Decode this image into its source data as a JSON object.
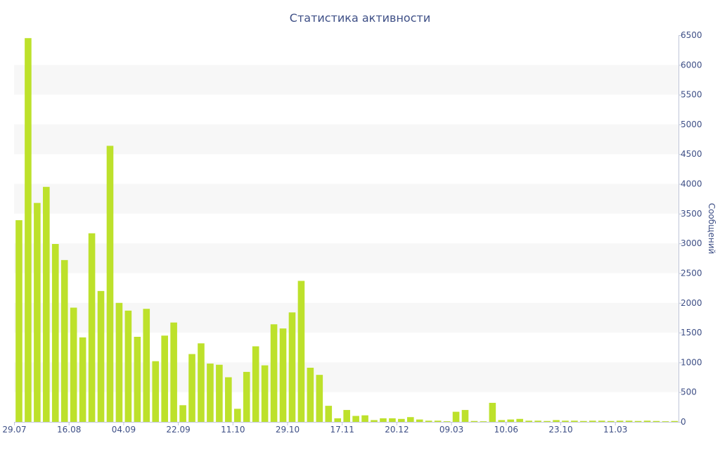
{
  "chart_data": {
    "type": "bar",
    "title": "Статистика активности",
    "ylabel": "Сообщений",
    "ylim": [
      0,
      6500
    ],
    "y_ticks": [
      0,
      500,
      1000,
      1500,
      2000,
      2500,
      3000,
      3500,
      4000,
      4500,
      5000,
      5500,
      6000,
      6500
    ],
    "y_axis_side": "right",
    "grid": "alternating horizontal bands",
    "x_tick_labels": [
      {
        "label": "29.07",
        "index": 0
      },
      {
        "label": "16.08",
        "index": 6
      },
      {
        "label": "04.09",
        "index": 12
      },
      {
        "label": "22.09",
        "index": 18
      },
      {
        "label": "11.10",
        "index": 24
      },
      {
        "label": "29.10",
        "index": 30
      },
      {
        "label": "17.11",
        "index": 36
      },
      {
        "label": "20.12",
        "index": 42
      },
      {
        "label": "09.03",
        "index": 48
      },
      {
        "label": "10.06",
        "index": 54
      },
      {
        "label": "23.10",
        "index": 60
      },
      {
        "label": "11.03",
        "index": 66
      }
    ],
    "values": [
      3390,
      6450,
      3680,
      3950,
      2990,
      2720,
      1920,
      1420,
      3170,
      2200,
      4640,
      2000,
      1870,
      1430,
      1900,
      1020,
      1450,
      1670,
      280,
      1140,
      1320,
      980,
      960,
      750,
      220,
      840,
      1270,
      950,
      1640,
      1570,
      1840,
      2370,
      910,
      790,
      270,
      60,
      200,
      100,
      110,
      30,
      60,
      60,
      50,
      80,
      40,
      20,
      20,
      10,
      170,
      200,
      15,
      10,
      320,
      30,
      40,
      50,
      20,
      20,
      15,
      30,
      20,
      20,
      15,
      20,
      20,
      15,
      20,
      20,
      15,
      20,
      15,
      10,
      15
    ],
    "colors": {
      "bar": "#bde12b",
      "text": "#3e4f86",
      "band": "#f7f7f7",
      "axis": "#c0c6d8"
    }
  }
}
